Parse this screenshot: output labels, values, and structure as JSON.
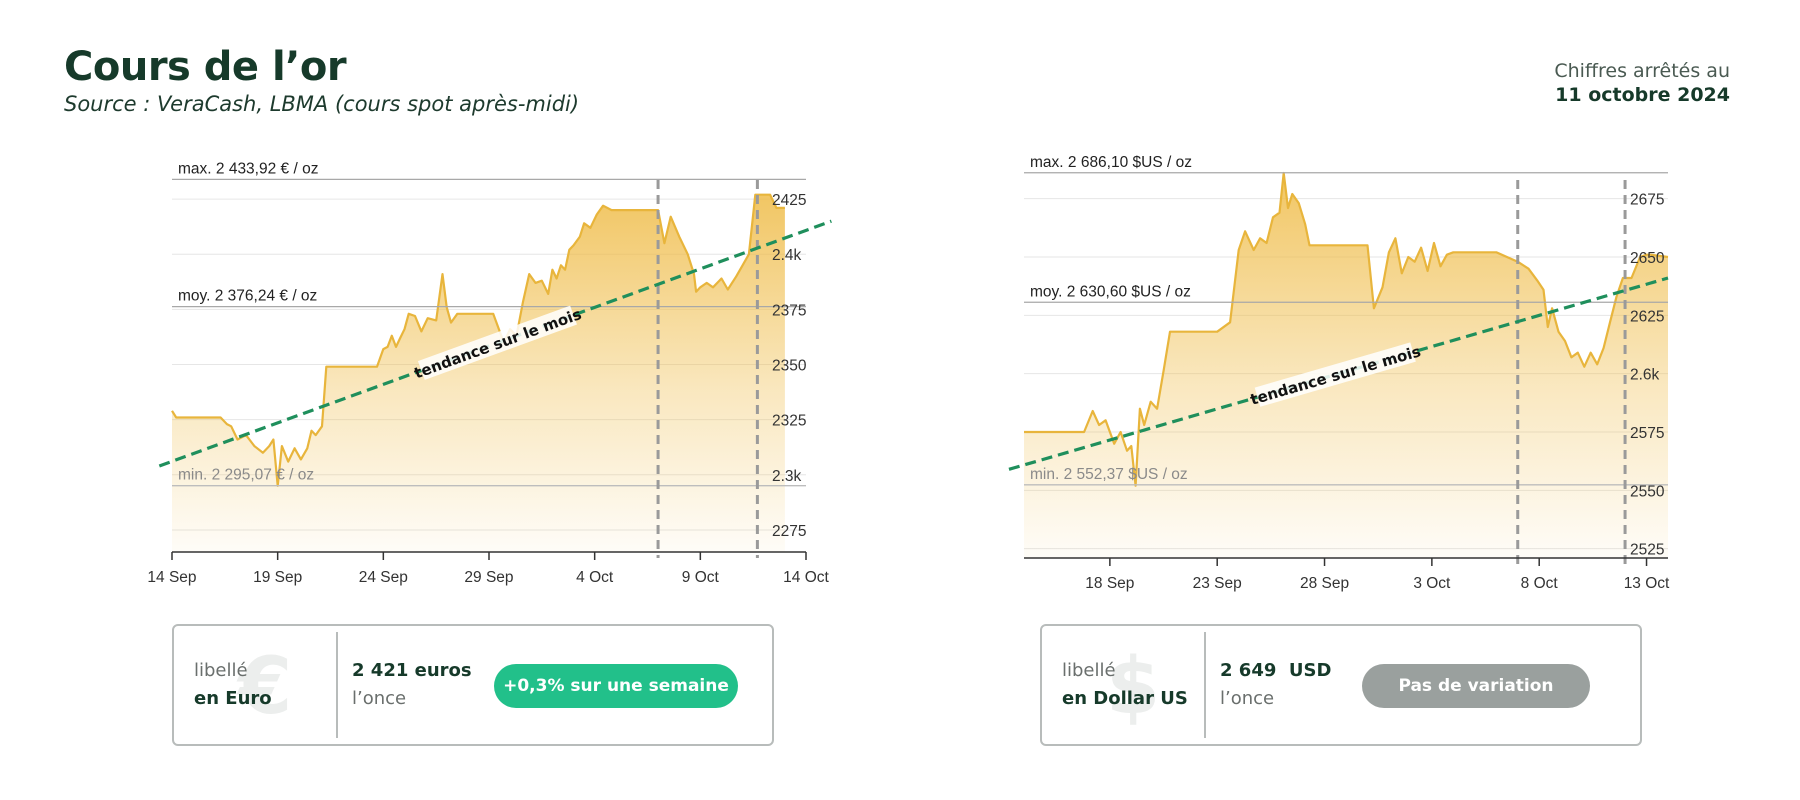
{
  "header": {
    "title": "Cours de l’or",
    "subtitle": "Source : VeraCash, LBMA (cours spot après-midi)",
    "date_label": "Chiffres arrêtés au",
    "date_value": "11 octobre 2024"
  },
  "colors": {
    "gold_line": "#e8b53c",
    "gold_fill": "#efbc48",
    "trend": "#1f8f5c",
    "badge_up": "#22c08a",
    "badge_neutral": "#9aa09e",
    "dashed_marker": "#9a9a9a"
  },
  "chart_data": [
    {
      "type": "area",
      "currency": "EUR",
      "ylim": [
        2265,
        2440
      ],
      "y_ticks": [
        2275,
        2300,
        2325,
        2350,
        2375,
        2400,
        2425
      ],
      "y_tick_labels": [
        "2275",
        "2.3k",
        "2325",
        "2350",
        "2375",
        "2.4k",
        "2425"
      ],
      "x_range": [
        0,
        30
      ],
      "x_ticks": [
        0,
        5,
        10,
        15,
        20,
        25,
        30
      ],
      "x_tick_labels": [
        "14 Sep",
        "19 Sep",
        "24 Sep",
        "29 Sep",
        "4 Oct",
        "9 Oct",
        "14 Oct"
      ],
      "markers_x": [
        23,
        27.7
      ],
      "ref_lines": [
        {
          "value": 2433.92,
          "label": "max. 2 433,92 € / oz"
        },
        {
          "value": 2376.24,
          "label": "moy. 2 376,24 € / oz"
        },
        {
          "value": 2295.07,
          "label": "min. 2 295,07 € / oz"
        }
      ],
      "trend": {
        "label": "tendance sur le mois",
        "x": [
          -0.6,
          31.2
        ],
        "y": [
          2304,
          2415
        ],
        "label_x": 15.4
      },
      "series": [
        {
          "x": [
            0,
            0.2,
            1,
            2,
            2.3,
            2.6,
            2.8,
            3.1,
            3.5,
            3.9,
            4.3,
            4.6,
            4.8,
            5.0,
            5.2,
            5.5,
            5.8,
            6.1,
            6.4,
            6.6,
            6.8,
            7.1,
            7.3,
            8,
            9,
            9.3,
            9.7,
            10,
            10.2,
            10.4,
            10.6,
            10.8,
            11,
            11.2,
            11.5,
            11.8,
            12.1,
            12.5,
            12.8,
            13.0,
            13.2,
            13.5,
            14.5,
            15.2,
            15.7,
            16,
            16.3,
            16.6,
            16.9,
            17.2,
            17.5,
            17.8,
            18.0,
            18.2,
            18.4,
            18.6,
            18.8,
            19.0,
            19.3,
            19.5,
            19.8,
            20.1,
            20.4,
            20.8,
            21.2,
            21.6,
            22.5,
            23,
            23.3,
            23.6,
            24.0,
            24.4,
            24.7,
            24.8,
            25.0,
            25.3,
            25.6,
            26.0,
            26.3,
            26.7,
            27.0,
            27.3,
            27.6,
            28.0,
            28.3,
            28.6,
            29
          ],
          "y": [
            2329,
            2326,
            2326,
            2326,
            2326,
            2323,
            2322,
            2316,
            2318,
            2313,
            2310,
            2313,
            2316,
            2295,
            2313,
            2306,
            2312,
            2307,
            2312,
            2320,
            2318,
            2322,
            2349,
            2349,
            2349,
            2349,
            2349,
            2357,
            2358,
            2363,
            2358,
            2362,
            2366,
            2373,
            2372,
            2365,
            2371,
            2370,
            2391,
            2376,
            2369,
            2373,
            2373,
            2373,
            2360,
            2366,
            2363,
            2378,
            2391,
            2387,
            2388,
            2382,
            2393,
            2389,
            2395,
            2393,
            2402,
            2404,
            2408,
            2414,
            2412,
            2418,
            2422,
            2420,
            2420,
            2420,
            2420,
            2420,
            2405,
            2417,
            2408,
            2400,
            2391,
            2383,
            2385,
            2387,
            2385,
            2389,
            2384,
            2390,
            2395,
            2400,
            2427,
            2427,
            2427,
            2421,
            2421
          ]
        }
      ]
    },
    {
      "type": "area",
      "currency": "USD",
      "ylim": [
        2521,
        2689
      ],
      "y_ticks": [
        2525,
        2550,
        2575,
        2600,
        2625,
        2650,
        2675
      ],
      "y_tick_labels": [
        "2525",
        "2550",
        "2575",
        "2.6k",
        "2625",
        "2650",
        "2675"
      ],
      "x_range": [
        14,
        44
      ],
      "x_ticks": [
        18,
        23,
        28,
        33,
        38,
        43
      ],
      "x_tick_labels": [
        "18 Sep",
        "23 Sep",
        "28 Sep",
        "3 Oct",
        "8 Oct",
        "13 Oct"
      ],
      "markers_x": [
        37,
        42
      ],
      "ref_lines": [
        {
          "value": 2686.1,
          "label": "max. 2 686,10 $US / oz"
        },
        {
          "value": 2630.6,
          "label": "moy. 2 630,60 $US / oz"
        },
        {
          "value": 2552.37,
          "label": "min. 2 552,37 $US / oz"
        }
      ],
      "trend": {
        "label": "tendance sur le mois",
        "x": [
          13.3,
          44
        ],
        "y": [
          2559,
          2641
        ],
        "label_x": 28.5
      },
      "series": [
        {
          "x": [
            14,
            15,
            16,
            16.8,
            17.2,
            17.5,
            17.8,
            18.2,
            18.5,
            18.8,
            19.0,
            19.2,
            19.4,
            19.6,
            19.9,
            20.2,
            20.5,
            20.8,
            21.0,
            21.5,
            22,
            23,
            23.6,
            24,
            24.3,
            24.7,
            25,
            25.3,
            25.6,
            25.9,
            26.1,
            26.3,
            26.5,
            26.8,
            27.1,
            27.3,
            27.6,
            28.5,
            29.5,
            30,
            30.3,
            30.7,
            31.0,
            31.3,
            31.6,
            31.9,
            32.2,
            32.5,
            32.8,
            33.1,
            33.4,
            33.7,
            34.0,
            34.3,
            34.6,
            35.3,
            36,
            37,
            37.5,
            37.9,
            38.2,
            38.4,
            38.6,
            38.9,
            39.2,
            39.5,
            39.8,
            40.1,
            40.4,
            40.7,
            41.0,
            41.3,
            41.6,
            41.9,
            42.3,
            42.7,
            43.0,
            43.2,
            44
          ],
          "y": [
            2575,
            2575,
            2575,
            2575,
            2584,
            2578,
            2580,
            2570,
            2575,
            2567,
            2569,
            2552,
            2585,
            2578,
            2588,
            2585,
            2601,
            2618,
            2618,
            2618,
            2618,
            2618,
            2622,
            2653,
            2661,
            2653,
            2658,
            2656,
            2667,
            2669,
            2686,
            2671,
            2677,
            2673,
            2664,
            2655,
            2655,
            2655,
            2655,
            2655,
            2628,
            2637,
            2652,
            2658,
            2643,
            2650,
            2648,
            2654,
            2644,
            2656,
            2646,
            2651,
            2652,
            2652,
            2652,
            2652,
            2652,
            2648,
            2645,
            2640,
            2636,
            2620,
            2628,
            2618,
            2614,
            2607,
            2609,
            2603,
            2609,
            2604,
            2611,
            2622,
            2633,
            2641,
            2641,
            2650,
            2651,
            2651,
            2650
          ]
        }
      ]
    }
  ],
  "cards": [
    {
      "glyph": "€",
      "label_top": "libellé",
      "label_bottom": "en Euro",
      "value": "2 421 euros",
      "unit": "l’once",
      "badge": "+0,3% sur une semaine",
      "badge_color": "#22c08a"
    },
    {
      "glyph": "$",
      "label_top": "libellé",
      "label_bottom": "en Dollar US",
      "value": "2 649  USD",
      "unit": "l’once",
      "badge": "Pas de variation",
      "badge_color": "#9aa09e"
    }
  ]
}
